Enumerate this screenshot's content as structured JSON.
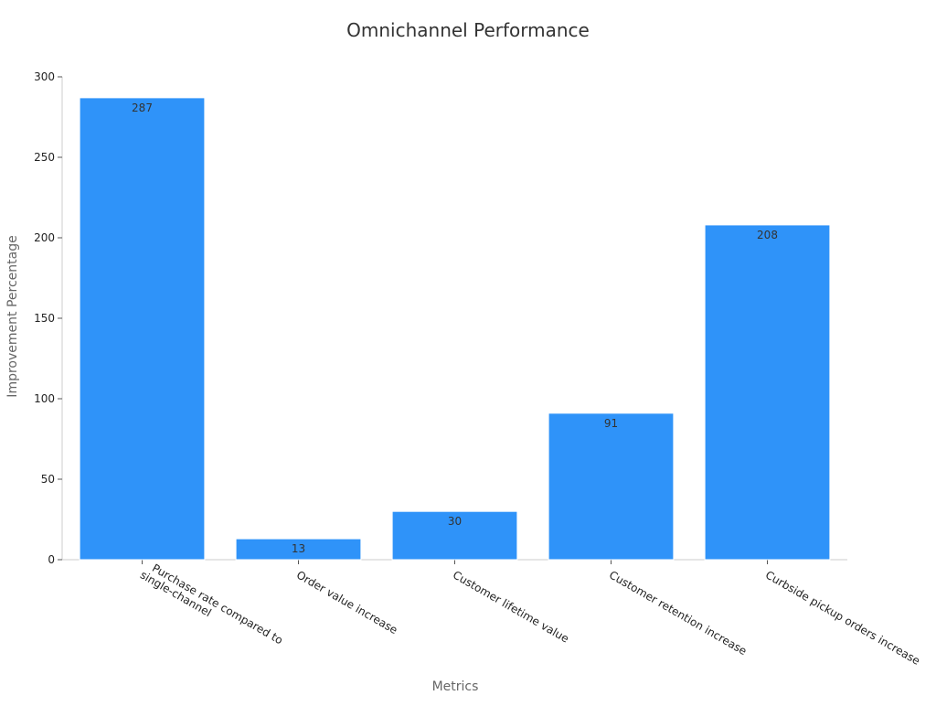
{
  "chart_data": {
    "type": "bar",
    "title": "Omnichannel Performance",
    "xlabel": "Metrics",
    "ylabel": "Improvement Percentage",
    "categories": [
      [
        "Purchase rate compared to",
        "single-channel"
      ],
      [
        "Order value increase"
      ],
      [
        "Customer lifetime value"
      ],
      [
        "Customer retention increase"
      ],
      [
        "Curbside pickup orders increase"
      ]
    ],
    "values": [
      287,
      13,
      30,
      91,
      208
    ],
    "ylim": [
      0,
      300
    ],
    "yticks": [
      0,
      50,
      100,
      150,
      200,
      250,
      300
    ],
    "grid": false,
    "legend": "none",
    "bar_color": "#2f93f9",
    "axis_color": "#cccccc",
    "tick_label_color": "#222222",
    "title_color": "#333333",
    "axis_label_color": "#666666",
    "data_label_color": "#333333"
  }
}
